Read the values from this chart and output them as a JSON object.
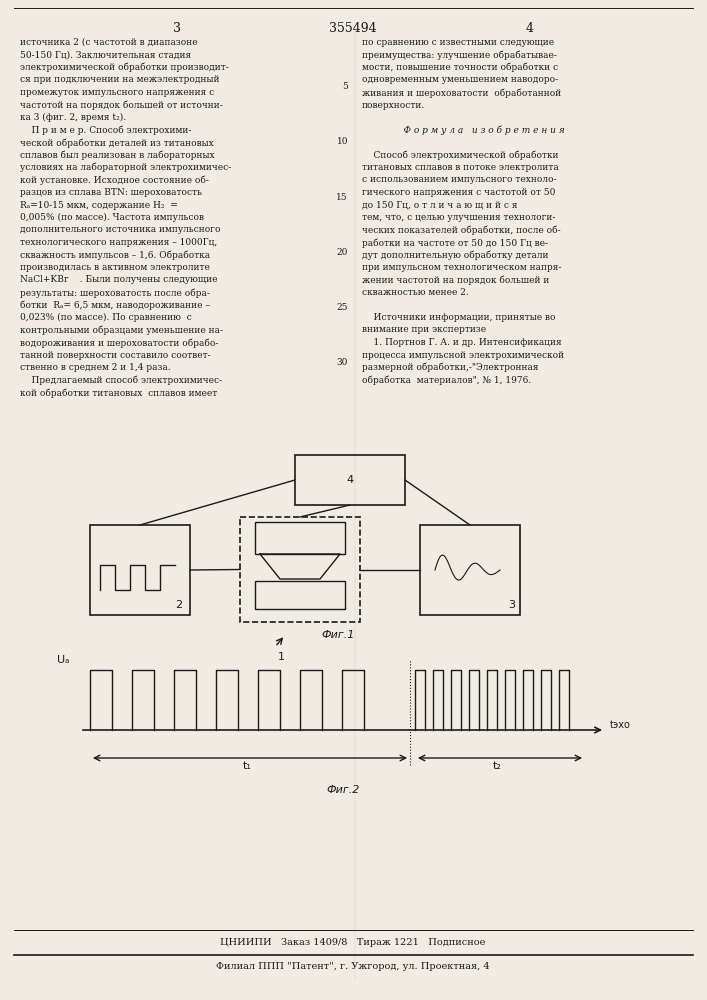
{
  "page_number_left": "3",
  "page_number_center": "355494",
  "page_number_right": "4",
  "background_color": "#f0ece4",
  "text_color": "#1a1a1a",
  "left_column_text": [
    "источника 2 (с частотой в диапазоне",
    "50-150 Гц). Заключительная стадия",
    "электрохимической обработки производит-",
    "ся при подключении на межэлектродный",
    "промежуток импульсного напряжения с",
    "частотой на порядок большей от источни-",
    "ка 3 (фиг. 2, время t₂).",
    "    П р и м е р. Способ электрохими-",
    "ческой обработки деталей из титановых",
    "сплавов был реализован в лабораторных",
    "условиях на лабораторной электрохимичес-",
    "кой установке. Исходное состояние об-",
    "разцов из сплава ВТΝ: шероховатость",
    "Rₐ=10-15 мкм, содержание H₂  =",
    "0,005% (по массе). Частота импульсов",
    "дополнительного источника импульсного",
    "технологического напряжения – 1000Гц,",
    "скважность импульсов – 1,6. Обработка",
    "производилась в активном электролите",
    "NaCl+KBr    . Были получены следующие",
    "результаты: шероховатость после обра-",
    "ботки  Rₐ= 6,5 мкм, наводороживание –",
    "0,023% (по массе). По сравнению  с",
    "контрольными образцами уменьшение на-",
    "водороживания и шероховатости обрабо-",
    "танной поверхности составило соответ-",
    "ственно в среднем 2 и 1,4 раза.",
    "    Предлагаемый способ электрохимичес-",
    "кой обработки титановых  сплавов имеет"
  ],
  "right_column_text": [
    "по сравнению с известными следующие",
    "преимущества: улучшение обрабатывае-",
    "мости, повышение точности обработки с",
    "одновременным уменьшением наводоро-",
    "живания и шероховатости  обработанной",
    "поверхности.",
    "",
    "    Ф о р м у л а   и з о б р е т е н и я",
    "",
    "    Способ электрохимической обработки",
    "титановых сплавов в потоке электролита",
    "с использованием импульсного техноло-",
    "гического напряжения с частотой от 50",
    "до 150 Гц, о т л и ч а ю щ и й с я",
    "тем, что, с целью улучшения технологи-",
    "ческих показателей обработки, после об-",
    "работки на частоте от 50 до 150 Гц ве-",
    "дут дополнительную обработку детали",
    "при импульсном технологическом напря-",
    "жении частотой на порядок большей и",
    "скважностью менее 2.",
    "",
    "    Источники информации, принятые во",
    "внимание при экспертизе",
    "    1. Портнов Г. А. и др. Интенсификация",
    "процесса импульсной электрохимической",
    "размерной обработки,-\"Электронная",
    "обработка  материалов\", № 1, 1976."
  ],
  "line_numbers": [
    5,
    10,
    15,
    20,
    25,
    30
  ],
  "fig1_label": "Фиг.1",
  "fig2_label": "Фиг.2",
  "footer_line1": "ЦНИИПИ   Заказ 1409/8   Тираж 1221   Подписное",
  "footer_line2": "Филиал ППП \"Патент\", г. Ужгород, ул. Проектная, 4"
}
